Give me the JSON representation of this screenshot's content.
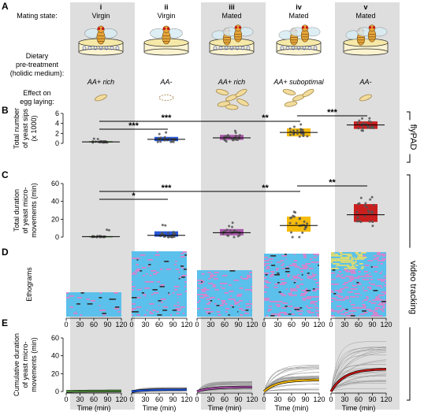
{
  "panel_letters": [
    "A",
    "B",
    "C",
    "D",
    "E"
  ],
  "row_labels": {
    "mating_state": "Mating state:",
    "dietary": [
      "Dietary",
      "pre-treatment",
      "(holidic medium):"
    ],
    "effect": [
      "Effect on",
      "egg laying:"
    ]
  },
  "conditions": [
    {
      "numeral": "i",
      "mating": "Virgin",
      "diet": "AA+ rich",
      "eggs": 1,
      "sips_median": 0.3,
      "dur_median": 0.5,
      "sips_color": "#4f8f3a",
      "dur_color": "#4f8f3a"
    },
    {
      "numeral": "ii",
      "mating": "Virgin",
      "diet": "AA-",
      "eggs": 0,
      "sips_median": 0.8,
      "dur_median": 2,
      "sips_color": "#1a4fd6",
      "dur_color": "#1a4fd6"
    },
    {
      "numeral": "iii",
      "mating": "Mated",
      "diet": "AA+ rich",
      "eggs": 6,
      "sips_median": 1.1,
      "dur_median": 5,
      "sips_color": "#a64ca6",
      "dur_color": "#a64ca6"
    },
    {
      "numeral": "iv",
      "mating": "Mated",
      "diet": "AA+ suboptimal",
      "eggs": 4,
      "sips_median": 2.2,
      "dur_median": 13,
      "sips_color": "#f5b800",
      "dur_color": "#f5b800"
    },
    {
      "numeral": "v",
      "mating": "Mated",
      "diet": "AA-",
      "eggs": 1,
      "sips_median": 3.7,
      "dur_median": 25,
      "sips_color": "#c81414",
      "dur_color": "#c81414"
    }
  ],
  "panel_b": {
    "ylabel": [
      "Total number",
      "of yeast sips",
      "(x 1000)"
    ],
    "ylim": [
      0,
      6
    ],
    "yticks": [
      "0",
      "2",
      "4",
      "6"
    ],
    "boxes": [
      [
        0.2,
        0.45
      ],
      [
        0.45,
        1.3
      ],
      [
        0.7,
        1.7
      ],
      [
        1.4,
        3.0
      ],
      [
        2.9,
        4.4
      ]
    ],
    "sig": [
      {
        "from": 0,
        "to": 1,
        "label": "***"
      },
      {
        "from": 0,
        "to": 2,
        "label": "***"
      },
      {
        "from": 2,
        "to": 3,
        "label": "**"
      },
      {
        "from": 3,
        "to": 4,
        "label": "***"
      }
    ]
  },
  "panel_c": {
    "ylabel": [
      "Total duration",
      "of yeast micro-",
      "movements (min)"
    ],
    "ylim": [
      0,
      60
    ],
    "yticks": [
      "0",
      "20",
      "40",
      "60"
    ],
    "boxes": [
      [
        0,
        1
      ],
      [
        0.5,
        6.5
      ],
      [
        2,
        9
      ],
      [
        6,
        23
      ],
      [
        17,
        37
      ]
    ],
    "sig": [
      {
        "from": 0,
        "to": 1,
        "label": "*"
      },
      {
        "from": 0,
        "to": 2,
        "label": "***"
      },
      {
        "from": 2,
        "to": 3,
        "label": "**"
      },
      {
        "from": 3,
        "to": 4,
        "label": "**"
      }
    ]
  },
  "panel_d": {
    "ylabel": "Ethograms",
    "xticks": [
      "0",
      "30",
      "60",
      "90",
      "120"
    ],
    "palette": [
      "#5bc0eb",
      "#6fb8e8",
      "#e87ac8",
      "#f1e060",
      "#9b59b6",
      "#2d2d2d",
      "#b0d8f0"
    ]
  },
  "panel_e": {
    "ylabel": [
      "Cumulative duration",
      "of yeast micro-",
      "movements (min)"
    ],
    "ylim": [
      0,
      60
    ],
    "yticks": [
      "0",
      "20",
      "40",
      "60"
    ],
    "xticks": [
      "0",
      "30",
      "60",
      "90",
      "120"
    ],
    "xlabel": "Time  (min)"
  },
  "side_labels": {
    "flypad": "flyPAD",
    "video": "video tracking"
  }
}
